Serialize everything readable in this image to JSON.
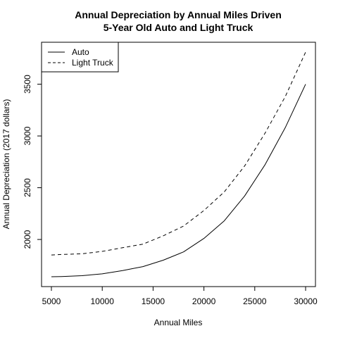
{
  "chart_data": {
    "type": "line",
    "title": "Annual Depreciation by Annual Miles Driven",
    "subtitle": "5-Year Old Auto and Light Truck",
    "xlabel": "Annual Miles",
    "ylabel": "Annual Depreciation (2017 dollars)",
    "xlim": [
      5000,
      30000
    ],
    "ylim": [
      1640,
      3810
    ],
    "xticks": [
      5000,
      10000,
      15000,
      20000,
      25000,
      30000
    ],
    "yticks": [
      2000,
      2500,
      3000,
      3500
    ],
    "grid": false,
    "legend_position": "top-left",
    "x": [
      5000,
      6000,
      8000,
      10000,
      12000,
      14000,
      16000,
      18000,
      20000,
      22000,
      24000,
      26000,
      28000,
      30000
    ],
    "series": [
      {
        "name": "Auto",
        "style": "solid",
        "color": "#000000",
        "values": [
          1640,
          1642,
          1650,
          1668,
          1700,
          1738,
          1800,
          1880,
          2010,
          2180,
          2420,
          2720,
          3080,
          3500
        ]
      },
      {
        "name": "Light Truck",
        "style": "dashed",
        "color": "#000000",
        "values": [
          1850,
          1855,
          1862,
          1885,
          1920,
          1955,
          2035,
          2130,
          2280,
          2460,
          2710,
          3025,
          3380,
          3810
        ]
      }
    ]
  }
}
